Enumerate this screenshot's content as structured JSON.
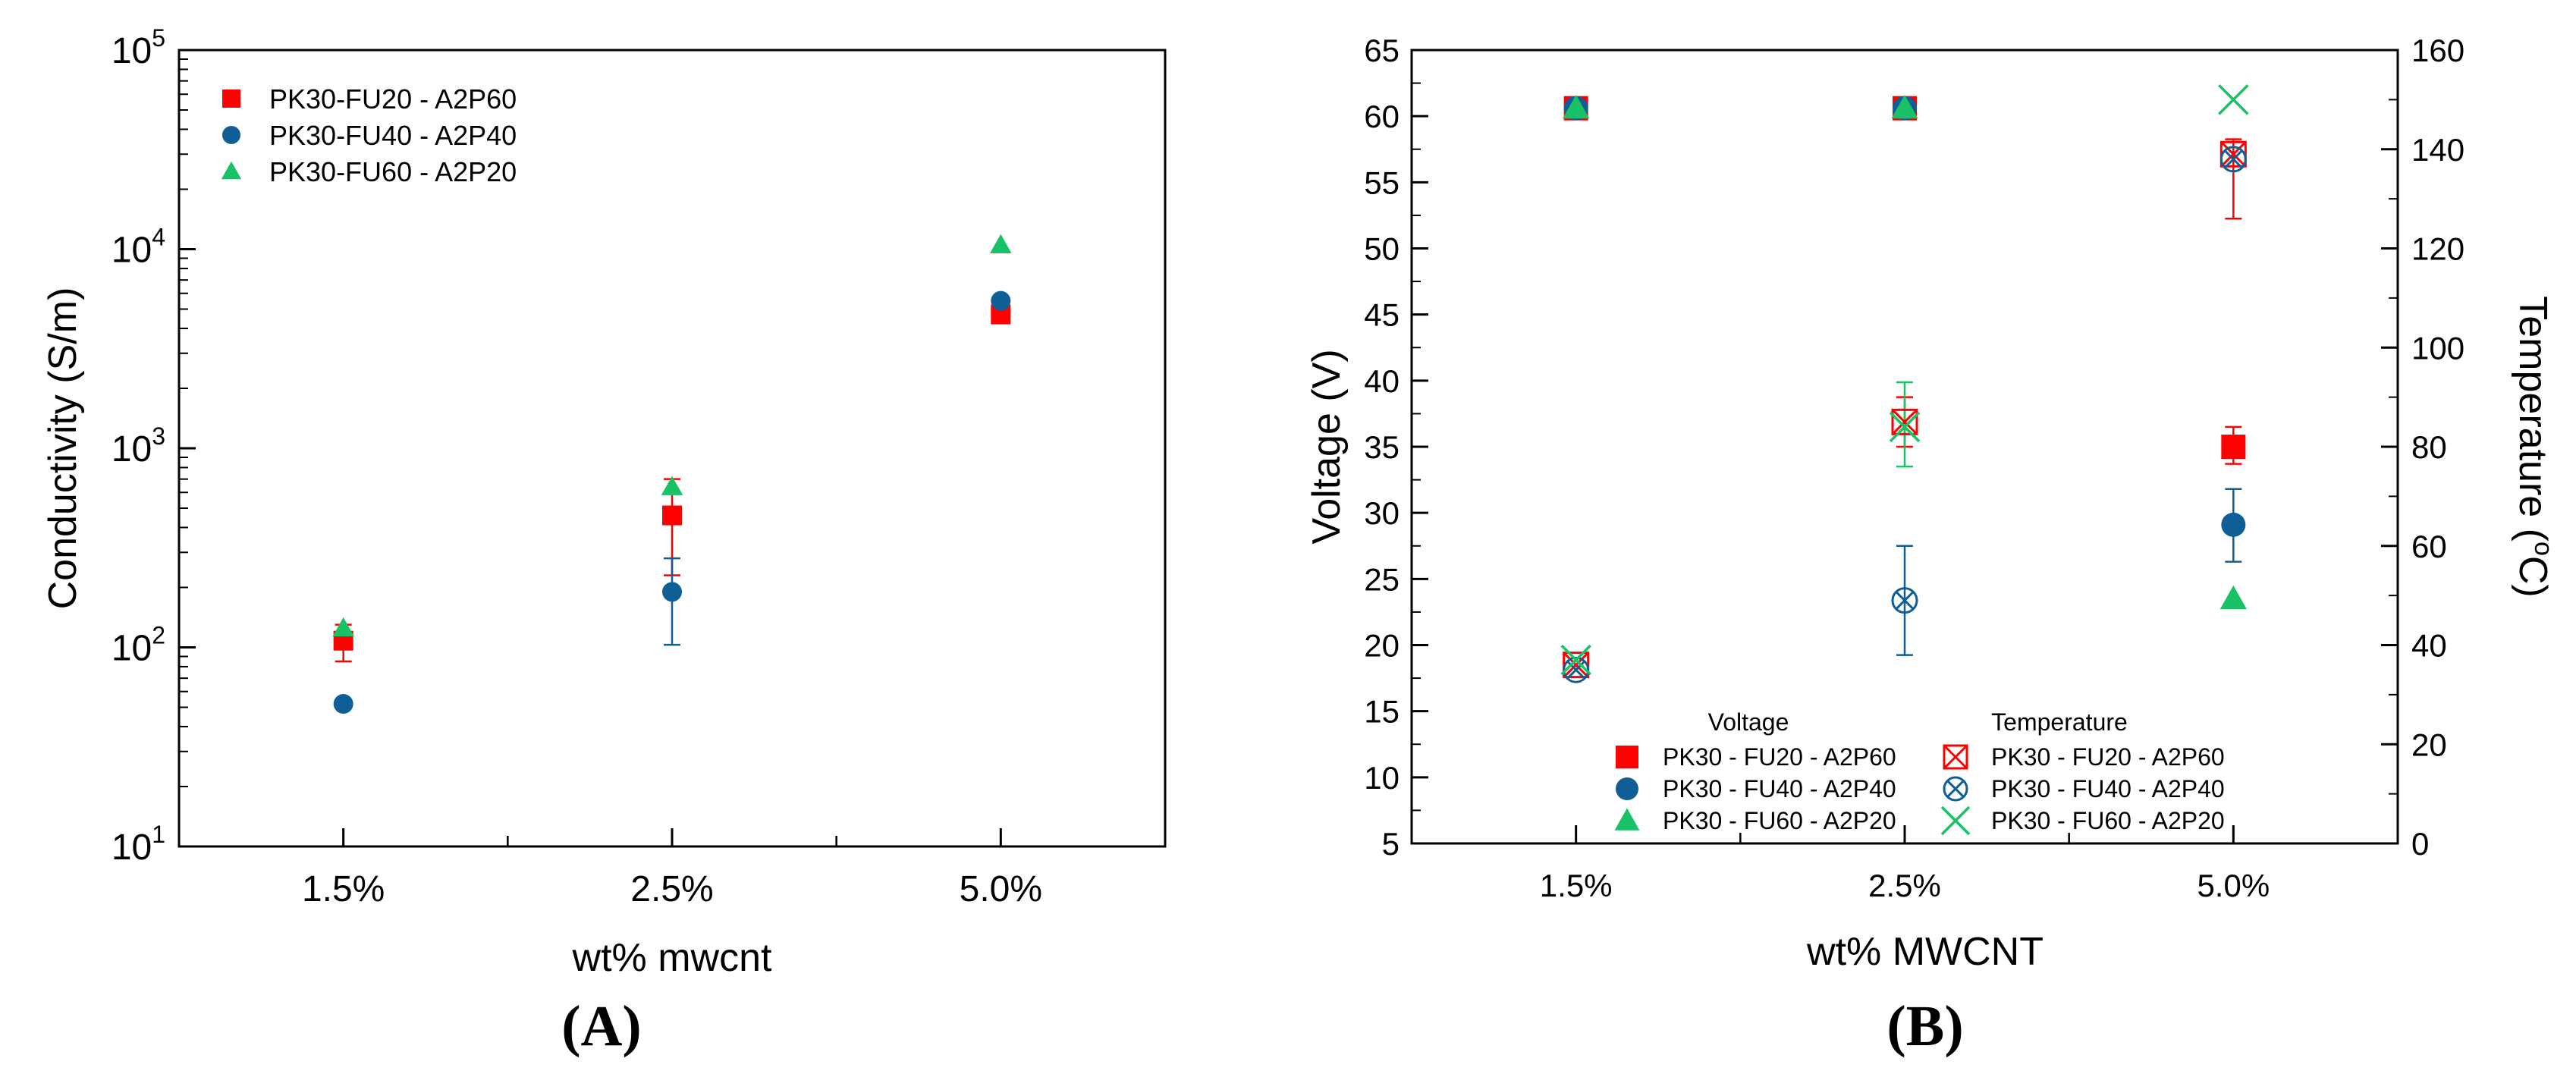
{
  "chart_data": [
    {
      "type": "scatter",
      "panel_label": "(A)",
      "title": "",
      "xlabel": "wt% mwcnt",
      "ylabel": "Conductivity (S/m)",
      "yscale": "log",
      "ylim": [
        10,
        100000
      ],
      "categories": [
        "1.5%",
        "2.5%",
        "5.0%"
      ],
      "y_ticks": [
        {
          "base": "10",
          "exp": "1",
          "value": 10
        },
        {
          "base": "10",
          "exp": "2",
          "value": 100
        },
        {
          "base": "10",
          "exp": "3",
          "value": 1000
        },
        {
          "base": "10",
          "exp": "4",
          "value": 10000
        },
        {
          "base": "10",
          "exp": "5",
          "value": 100000
        }
      ],
      "legend_position": "top-left",
      "series": [
        {
          "name": "PK30-FU20 - A2P60",
          "marker": "square",
          "color": "#ff0000",
          "values": [
            108,
            460,
            4700
          ],
          "err_low": [
            85,
            230,
            null
          ],
          "err_high": [
            130,
            700,
            null
          ]
        },
        {
          "name": "PK30-FU40 - A2P40",
          "marker": "circle",
          "color": "#0f5f96",
          "values": [
            52,
            190,
            5500
          ],
          "err_low": [
            null,
            103,
            null
          ],
          "err_high": [
            null,
            280,
            null
          ]
        },
        {
          "name": "PK30-FU60 - A2P20",
          "marker": "triangle",
          "color": "#19c267",
          "values": [
            125,
            640,
            10500
          ],
          "err_low": [
            null,
            null,
            null
          ],
          "err_high": [
            null,
            null,
            null
          ]
        }
      ]
    },
    {
      "type": "scatter",
      "panel_label": "(B)",
      "title": "",
      "xlabel": "wt% MWCNT",
      "ylabel": "Voltage (V)",
      "y2label_main": "Temperature (",
      "y2label_sup": "o",
      "y2label_end": "C)",
      "categories": [
        "1.5%",
        "2.5%",
        "5.0%"
      ],
      "ylim": [
        5,
        65
      ],
      "y_ticks": [
        "5",
        "10",
        "15",
        "20",
        "25",
        "30",
        "35",
        "40",
        "45",
        "50",
        "55",
        "60",
        "65"
      ],
      "y2lim": [
        0,
        160
      ],
      "y2_ticks": [
        "0",
        "20",
        "40",
        "60",
        "80",
        "100",
        "120",
        "140",
        "160"
      ],
      "legend_position": "bottom-center",
      "legend_heading_voltage": "Voltage",
      "legend_heading_temperature": "Temperature",
      "voltage_series": [
        {
          "name": "PK30 - FU20 - A2P60",
          "marker": "square",
          "color": "#ff0000",
          "values": [
            60.6,
            60.6,
            35.0
          ],
          "err_low": [
            null,
            null,
            33.7
          ],
          "err_high": [
            null,
            null,
            36.5
          ]
        },
        {
          "name": "PK30 - FU40 - A2P40",
          "marker": "circle",
          "color": "#0f5f96",
          "values": [
            60.6,
            60.6,
            29.1
          ],
          "err_low": [
            null,
            null,
            26.3
          ],
          "err_high": [
            null,
            null,
            31.8
          ]
        },
        {
          "name": "PK30 - FU60 - A2P20",
          "marker": "triangle",
          "color": "#19c267",
          "values": [
            60.6,
            60.6,
            23.5
          ],
          "err_low": [
            null,
            null,
            null
          ],
          "err_high": [
            null,
            null,
            null
          ]
        }
      ],
      "temperature_series": [
        {
          "name": "PK30 - FU20 - A2P60",
          "marker": "square-x",
          "color": "#ff0000",
          "values": [
            36,
            85,
            139
          ],
          "err_low": [
            null,
            80,
            126
          ],
          "err_high": [
            null,
            90,
            142
          ]
        },
        {
          "name": "PK30 - FU40 - A2P40",
          "marker": "circle-x",
          "color": "#0f5f96",
          "values": [
            35,
            49,
            138
          ],
          "err_low": [
            null,
            38,
            null
          ],
          "err_high": [
            null,
            60,
            null
          ]
        },
        {
          "name": "PK30 - FU60 - A2P20",
          "marker": "x",
          "color": "#19c267",
          "values": [
            37,
            84,
            150
          ],
          "err_low": [
            null,
            76,
            null
          ],
          "err_high": [
            null,
            93,
            null
          ]
        }
      ]
    }
  ]
}
